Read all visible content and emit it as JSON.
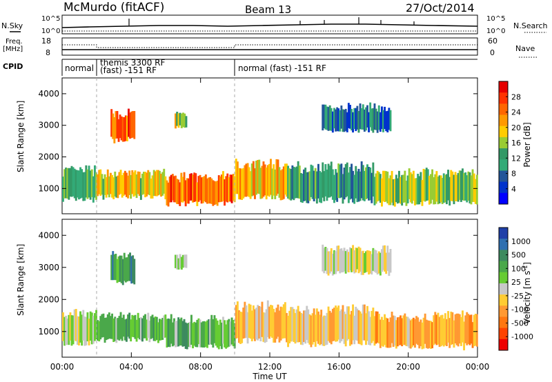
{
  "header": {
    "station": "McMurdo (fitACF)",
    "beam": "Beam 13",
    "date": "27/Oct/2014"
  },
  "top_panels": {
    "nsky_label": "N.Sky",
    "nsearch_label": "N.Search",
    "noise_ticks_left": [
      "10^5",
      "10^0"
    ],
    "noise_ticks_right": [
      "10^5",
      "10^0"
    ],
    "freq_label_line1": "Freq.",
    "freq_label_line2": "[MHz]",
    "freq_ticks": [
      "18",
      "8"
    ],
    "nave_label": "Nave",
    "nave_ticks": [
      "60",
      "0"
    ],
    "cpid_label": "CPID",
    "cpid_segments": [
      {
        "label": "normal",
        "start_hr": 0.0,
        "end_hr": 2.0
      },
      {
        "label": "themis 3300 RF",
        "label2": "(fast) -151 RF",
        "start_hr": 2.0,
        "end_hr": 10.0
      },
      {
        "label": "normal (fast) -151 RF",
        "start_hr": 10.0,
        "end_hr": 24.0
      }
    ]
  },
  "colorbars": {
    "power": {
      "label": "Power [dB]",
      "ticks": [
        "28",
        "24",
        "20",
        "16",
        "12",
        "8",
        "4"
      ],
      "colors": [
        "#e60000",
        "#ff3300",
        "#ff6600",
        "#ff9900",
        "#ffcc00",
        "#99cc33",
        "#339966",
        "#33aa77",
        "#225599",
        "#0033cc",
        "#0000ff"
      ]
    },
    "velocity": {
      "label": "Velocity [m s",
      "label_sup": "-1",
      "label_end": "]",
      "ticks": [
        "1000",
        "500",
        "100",
        "25",
        "-25",
        "-100",
        "-500",
        "-1000"
      ],
      "colors": [
        "#1f3fa8",
        "#2f6fb0",
        "#3d8a5f",
        "#4aa84a",
        "#66cc33",
        "#c8c8c8",
        "#ffcc33",
        "#ff9933",
        "#ff7711",
        "#ff4400",
        "#ee0000"
      ]
    }
  },
  "chart_data": [
    {
      "type": "heatmap",
      "name": "power",
      "ylabel": "Slant Range [km]",
      "xlabel": "Time UT",
      "ylim": [
        200,
        4500
      ],
      "xlim_hours": [
        0,
        24
      ],
      "yticks": [
        "1000",
        "2000",
        "3000",
        "4000"
      ],
      "xticks": [
        "00:00",
        "04:00",
        "08:00",
        "12:00",
        "16:00",
        "20:00",
        "00:00"
      ],
      "colorscale_db": [
        0,
        30
      ],
      "echo_regions": [
        {
          "t0": 0.0,
          "t1": 2.0,
          "r0": 600,
          "r1": 1500,
          "level_db": 12
        },
        {
          "t0": 2.8,
          "t1": 4.2,
          "r0": 2500,
          "r1": 3300,
          "level_db": 24
        },
        {
          "t0": 6.5,
          "t1": 7.2,
          "r0": 2900,
          "r1": 3300,
          "level_db": 16
        },
        {
          "t0": 2.0,
          "t1": 6.0,
          "r0": 700,
          "r1": 1400,
          "level_db": 18
        },
        {
          "t0": 6.0,
          "t1": 10.0,
          "r0": 500,
          "r1": 1300,
          "level_db": 24
        },
        {
          "t0": 10.0,
          "t1": 13.0,
          "r0": 700,
          "r1": 1700,
          "level_db": 20
        },
        {
          "t0": 13.0,
          "t1": 18.0,
          "r0": 600,
          "r1": 1600,
          "level_db": 10
        },
        {
          "t0": 18.0,
          "t1": 24.0,
          "r0": 500,
          "r1": 1400,
          "level_db": 14
        },
        {
          "t0": 15.0,
          "t1": 19.0,
          "r0": 2800,
          "r1": 3500,
          "level_db": 6
        }
      ]
    },
    {
      "type": "heatmap",
      "name": "velocity",
      "ylabel": "Slant Range [km]",
      "xlabel": "Time UT",
      "ylim": [
        200,
        4500
      ],
      "xlim_hours": [
        0,
        24
      ],
      "yticks": [
        "1000",
        "2000",
        "3000",
        "4000"
      ],
      "xticks": [
        "00:00",
        "04:00",
        "08:00",
        "12:00",
        "16:00",
        "20:00",
        "00:00"
      ],
      "colorscale_ms": [
        -1000,
        1000
      ],
      "echo_regions": [
        {
          "t0": 0.0,
          "t1": 2.0,
          "r0": 600,
          "r1": 1500,
          "level_ms": 25
        },
        {
          "t0": 2.8,
          "t1": 4.2,
          "r0": 2500,
          "r1": 3300,
          "level_ms": 500
        },
        {
          "t0": 6.5,
          "t1": 7.2,
          "r0": 2900,
          "r1": 3300,
          "level_ms": 100
        },
        {
          "t0": 2.0,
          "t1": 6.0,
          "r0": 700,
          "r1": 1400,
          "level_ms": 300
        },
        {
          "t0": 6.0,
          "t1": 10.0,
          "r0": 500,
          "r1": 1300,
          "level_ms": 300
        },
        {
          "t0": 10.0,
          "t1": 13.0,
          "r0": 700,
          "r1": 1700,
          "level_ms": -200
        },
        {
          "t0": 13.0,
          "t1": 18.0,
          "r0": 600,
          "r1": 1600,
          "level_ms": -200
        },
        {
          "t0": 18.0,
          "t1": 24.0,
          "r0": 500,
          "r1": 1400,
          "level_ms": -300
        },
        {
          "t0": 15.0,
          "t1": 19.0,
          "r0": 2800,
          "r1": 3500,
          "level_ms": 0
        }
      ]
    }
  ]
}
